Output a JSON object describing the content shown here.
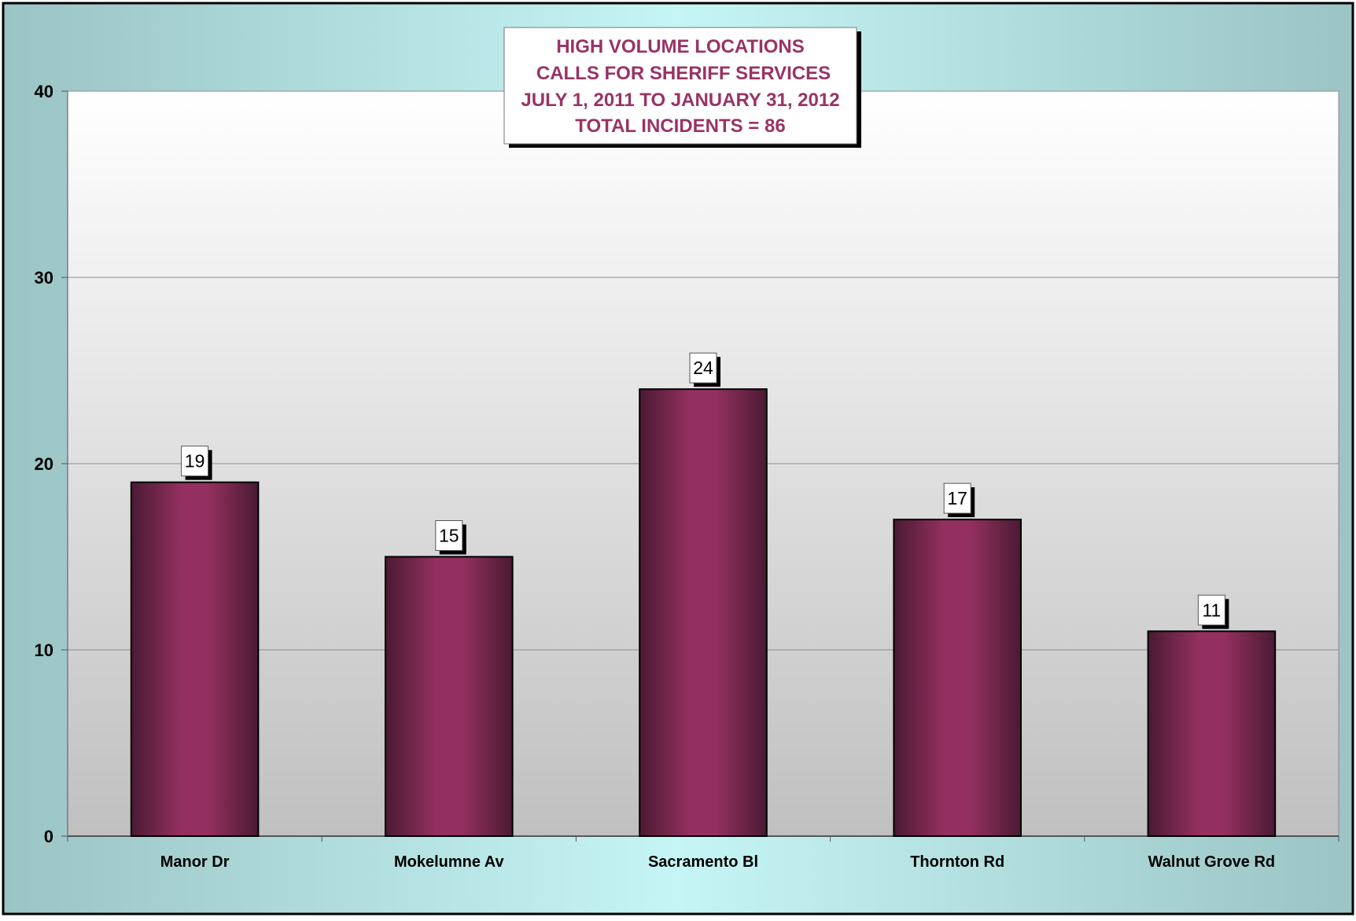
{
  "chart_data": {
    "type": "bar",
    "title_lines": [
      "HIGH VOLUME LOCATIONS",
      "CALLS FOR SHERIFF SERVICES",
      "JULY 1, 2011 TO JANUARY 31, 2012",
      "TOTAL INCIDENTS = 86"
    ],
    "categories": [
      "Manor Dr",
      "Mokelumne Av",
      "Sacramento Bl",
      "Thornton Rd",
      "Walnut Grove Rd"
    ],
    "values": [
      19,
      15,
      24,
      17,
      11
    ],
    "ylim": [
      0,
      40
    ],
    "yticks": [
      0,
      10,
      20,
      30,
      40
    ],
    "xlabel": "",
    "ylabel": "",
    "grid": true,
    "legend": "none",
    "colors": {
      "bar": "#94305f",
      "bar_dark": "#4a1a33",
      "title": "#993366",
      "frame_edge": "#9bc4c4",
      "frame_center": "#c6f5f5"
    }
  }
}
